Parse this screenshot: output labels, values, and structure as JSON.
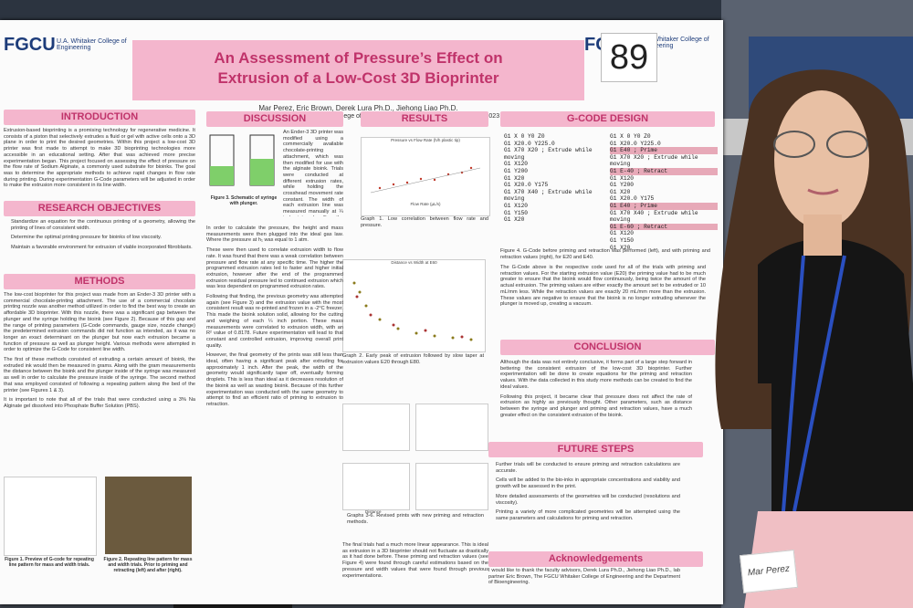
{
  "poster": {
    "logo_left": "FGCU",
    "college_left": "U.A. Whitaker College of Engineering",
    "logo_right": "FGCU",
    "college_right": "U.A. Whitaker College of Engineering",
    "number": "89",
    "title_line1": "An Assessment of Pressure’s Effect on",
    "title_line2": "Extrusion of a Low-Cost 3D Bioprinter",
    "authors": "Mar Perez, Eric Brown, Derek Lura Ph.D., Jiehong Liao Ph.D.",
    "affiliation": "Department of Bioengineering, Whitaker College of Engineering, Florida Gulf Coast University, 2023",
    "sections": [
      {
        "heading": "INTRODUCTION",
        "body": [
          "Extrusion-based bioprinting is a promising technology for regenerative medicine. It consists of a piston that selectively extrudes a fluid or gel with active cells onto a 3D plane in order to print the desired geometries. Within this project a low-cost 3D printer was first made to attempt to make 3D bioprinting technologies more accessible in an educational setting. After that was achieved more precise experimentation began. This project focused on assessing the effect of pressure on the flow rate of Sodium Alginate, a commonly used substrate for bioinks. The goal was to determine the appropriate methods to achieve rapid changes in flow rate during printing. During experimentation G-Code parameters will be adjusted in order to make the extrusion more consistent in its line width."
        ]
      },
      {
        "heading": "RESEARCH OBJECTIVES",
        "body": [
          "Standardize an equation for the continuous printing of a geometry, allowing the printing of lines of consistent width.",
          "Determine the optimal printing pressure for bioinks of low viscosity.",
          "Maintain a favorable environment for extrusion of viable incorporated fibroblasts."
        ]
      },
      {
        "heading": "METHODS",
        "body": [
          "The low-cost bioprinter for this project was made from an Ender-3 3D printer with a commercial chocolate-printing attachment. The use of a commercial chocolate printing nozzle was another method utilized in order to find the best way to create an affordable 3D bioprinter. With this nozzle, there was a significant gap between the plunger and the syringe holding the bioink (see Figure 2). Because of this gap and the range of printing parameters (G-Code commands, gauge size, nozzle change) the predetermined extrusion commands did not function as intended, as it was no longer an exact determinant on the plunger but now each extrusion became a function of pressure as well as plunger height. Various methods were attempted in order to optimize the G-Code for consistent line width.",
          "The first of these methods consisted of extruding a certain amount of bioink, the extruded ink would then be measured in grams. Along with the gram measurements the distance between the bioink and the plunger inside of the syringe was measured as well in order to calculate the pressure inside of the syringe. The second method that was employed consisted of following a repeating pattern along the bed of the printer (see Figures 1 & 3).",
          "It is important to note that all of the trials that were conducted using a 3% Na Alginate gel dissolved into Phosphate Buffer Solution (PBS)."
        ]
      },
      {
        "heading": "DISCUSSION",
        "body": [
          "An Ender-3 3D printer was modified using a commercially available chocolate-printing attachment, which was then modified for use with the alginate bioink. Trials were conducted at different extrusion rates, while holding the crosshead movement rate constant. The width of each extrusion line was measured manually at ¼ inch intervals. For the trials where pressure was measured, no consistent geometry was printed, instead the ink was simply extruded directly into a petri dish for weighing after extrusion. This data was analyzed by comparing flow rate of the bioink with the pressure that was calculated.",
          "In order to calculate the pressure, the height and mass measurements were then plugged into the ideal gas law. Where the pressure at h₁ was equal to 1 atm.",
          "These were then used to correlate extrusion width to flow rate. It was found that there was a weak correlation between pressure and flow rate at any specific time. The higher the programmed extrusion rates led to faster and higher initial extrusion, however after the end of the programmed extrusion residual pressure led to continued extrusion which was less dependent on programmed extrusion rates.",
          "Following that finding, the previous geometry was attempted again (see Figure 3) and the extrusion value with the most consistent result was re-printed and frozen in a -2°C freezer. This made the bioink solution solid, allowing for the cutting and weighing of each ¼ inch portion. These mass measurements were correlated to extrusion width, with an R² value of 0.8178. Future experimentation will lead to that constant and controlled extrusion, improving overall print quality.",
          "However, the final geometry of the prints was still less than ideal, often having a significant peak after extruding for approximately 1 inch. After the peak, the width of the geometry would significantly taper off, eventually forming droplets. This is less than ideal as it decreases resolution of the bioink as well as wasting bioink. Because of this further experimentation was conducted with the same geometry to attempt to find an efficient ratio of priming to extrusion to retraction."
        ]
      },
      {
        "heading": "RESULTS",
        "body": [
          "Graph 1. Low correlation between flow rate and pressure.",
          "Graph 2. Early peak of extrusion followed by slow taper at extrusion values E20 through E80.",
          "Graphs 3-6. Revised prints with new priming and retraction methods.",
          "The final trials had a much more linear appearance. This is ideal as extrusion in a 3D bioprinter should not fluctuate as drastically as it had done before. These priming and retraction values (see Figure 4) were found through careful estimations based on the pressure and width values that were found through previous experimentations."
        ]
      },
      {
        "heading": "G-CODE DESIGN",
        "body": [
          "Figure 4. G-Code before priming and retraction was performed (left), and with priming and retraction values (right), for E20 and E40.",
          "The G-Code above is the respective code used for all of the trials with priming and retraction values. For the starting extrusion value (E20) the priming value had to be much greater to ensure that the bioink would flow continuously, being twice the amount of the actual extrusion. The priming values are either exactly the amount set to be extruded or 10 mL/mm less. While the retraction values are exactly 20 mL/mm more than the extrusion. These values are negative to ensure that the bioink is no longer extruding whenever the plunger is moved up, creating a vacuum."
        ]
      },
      {
        "heading": "CONCLUSION",
        "body": [
          "Although the data was not entirely conclusive, it forms part of a large step forward in bettering the consistent extrusion of the low-cost 3D bioprinter. Further experimentation will be done to create equations for the priming and retraction values. With the data collected in this study more methods can be created to find the ideal values.",
          "Following this project, it became clear that pressure does not affect the rate of extrusion as highly as previously thought. Other parameters, such as distance between the syringe and plunger and priming and retraction values, have a much greater effect on the consistent extrusion of the bioink."
        ]
      },
      {
        "heading": "FUTURE STEPS",
        "body": [
          "Further trials will be conducted to ensure priming and retraction calculations are accurate.",
          "Cells will be added to the bio-inks in appropriate concentrations and viability and growth will be assessed in the print.",
          "More detailed assessments of the geometries will be conducted (resolutions and viscosity).",
          "Printing a variety of more complicated geometries will be attempted using the same parameters and calculations for priming and retraction."
        ]
      },
      {
        "heading": "Acknowledgements",
        "body": [
          "I would like to thank the faculty advisors, Derek Lura Ph.D., Jiehong Liao Ph.D., lab partner Eric Brown, The FGCU Whitaker College of Engineering and the Department of Bioengineering."
        ]
      }
    ],
    "figure_captions": [
      "Figure 3. Schematic of syringe with plunger.",
      "Figure 1. Preview of G-code for repeating line pattern for mass and width trials.",
      "Figure 2. Repeating line pattern for mass and width trials. Prior to priming and retracting (left) and after (right)."
    ],
    "graph_titles": [
      "Pressure vs Flow Rate (h/h plastic tip)",
      "Distance vs Width at E60",
      "Flow Rate (µL/s)",
      "Distance"
    ],
    "gcode_left": [
      "G1 X 0 Y0 Z0",
      "G1 X20.0 Y225.0",
      "G1 X70 X20 ; Extrude while moving",
      "G1 X120",
      "G1 Y200",
      "G1 X20",
      "G1 X20.0 Y175",
      "G1 X70 X40 ; Extrude while moving",
      "G1 X120",
      "G1 Y150",
      "G1 X20"
    ],
    "gcode_right": [
      "G1 X 0 Y0 Z0",
      "G1 X20.0 Y225.0",
      "G1 E40 ; Prime",
      "G1 X70 X20 ; Extrude while moving",
      "G1 E-40 ; Retract",
      "G1 X120",
      "G1 Y200",
      "G1 X20",
      "G1 X20.0 Y175",
      "G1 E40 ; Prime",
      "G1 X70 X40 ; Extrude while moving",
      "G1 E-60 ; Retract",
      "G1 X120",
      "G1 Y150",
      "G1 X20"
    ]
  },
  "name_tag": "Mar Perez"
}
